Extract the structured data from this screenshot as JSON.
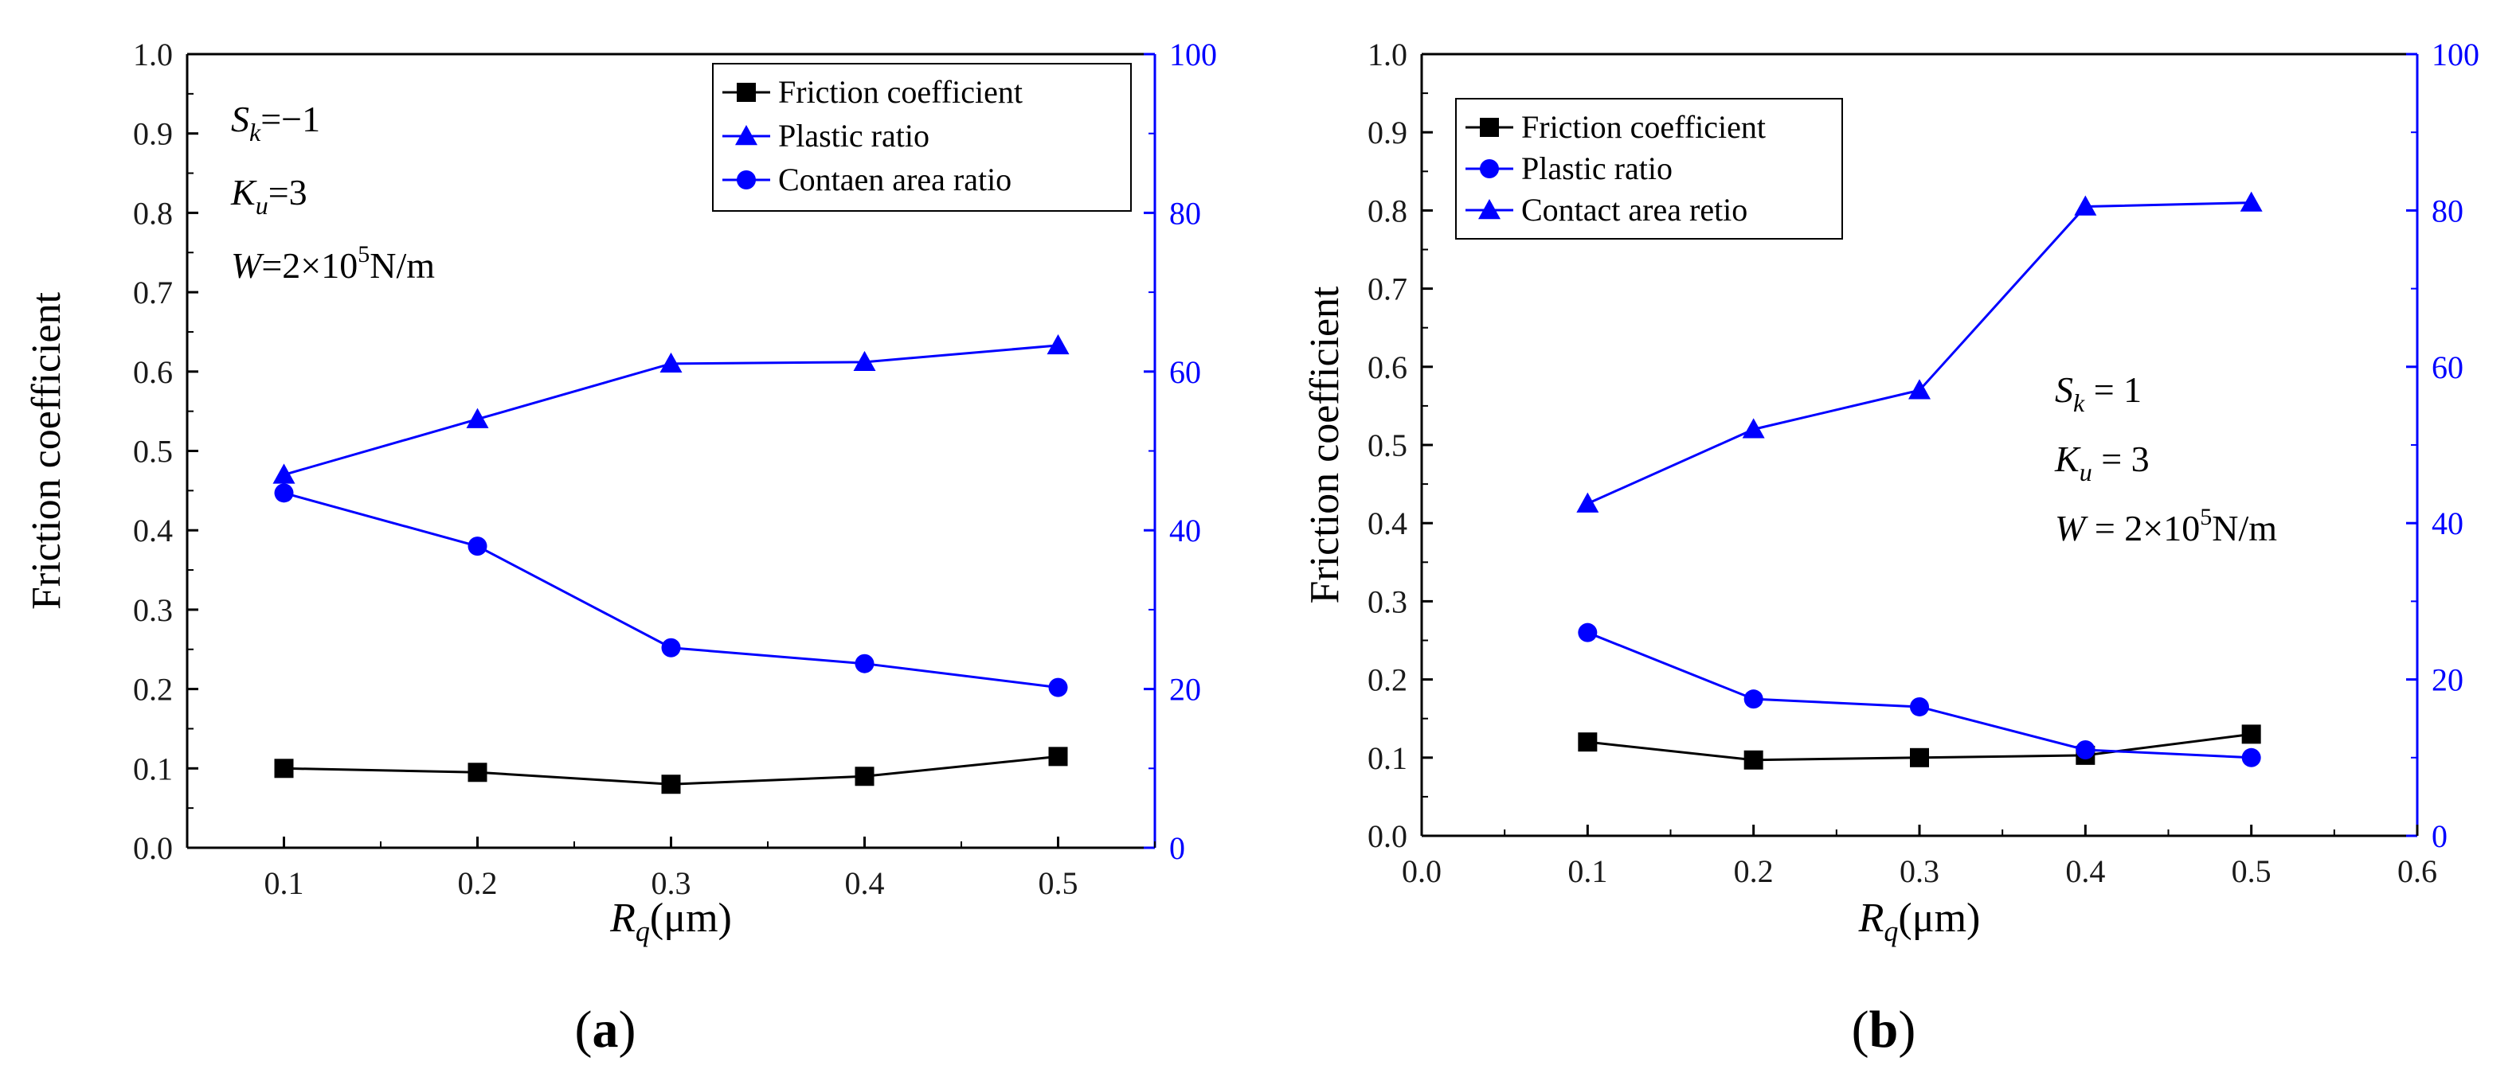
{
  "colors": {
    "black_series": "#000000",
    "blue_series": "#0000ff",
    "frame": "#000000"
  },
  "chart_data": [
    {
      "panel_label_open": "(",
      "panel_label_letter": "a",
      "panel_label_close": ")",
      "type": "line",
      "title": "",
      "xlabel_main": "R",
      "xlabel_sub": "q",
      "xlabel_unit": "(μm)",
      "ylabel": "Friction coefficient",
      "y2label": "",
      "xlim": [
        0.05,
        0.55
      ],
      "ylim": [
        0.0,
        1.0
      ],
      "y2lim": [
        0,
        100
      ],
      "x_ticks": [
        "0.1",
        "0.2",
        "0.3",
        "0.4",
        "0.5"
      ],
      "y_ticks": [
        "0.0",
        "0.1",
        "0.2",
        "0.3",
        "0.4",
        "0.5",
        "0.6",
        "0.7",
        "0.8",
        "0.9",
        "1.0"
      ],
      "y2_ticks": [
        "0",
        "20",
        "40",
        "60",
        "80",
        "100"
      ],
      "grid": false,
      "legend_position": "top-right",
      "legend": [
        {
          "label": "Friction coefficient",
          "marker": "square",
          "color": "#000000"
        },
        {
          "label": "Plastic ratio",
          "marker": "triangle",
          "color": "#0000ff"
        },
        {
          "label": "Contaen area ratio",
          "marker": "circle",
          "color": "#0000ff"
        }
      ],
      "series": [
        {
          "name": "Friction coefficient",
          "axis": "left",
          "color": "#000000",
          "marker": "square",
          "x": [
            0.1,
            0.2,
            0.3,
            0.4,
            0.5
          ],
          "values": [
            0.1,
            0.095,
            0.08,
            0.09,
            0.115
          ]
        },
        {
          "name": "Plastic ratio",
          "axis": "right",
          "color": "#0000ff",
          "marker": "triangle",
          "x": [
            0.1,
            0.2,
            0.3,
            0.4,
            0.5
          ],
          "values": [
            47,
            54,
            61,
            61.2,
            63.3
          ]
        },
        {
          "name": "Contaen area ratio",
          "axis": "right",
          "color": "#0000ff",
          "marker": "circle",
          "x": [
            0.1,
            0.2,
            0.3,
            0.4,
            0.5
          ],
          "values": [
            44.7,
            38,
            25.2,
            23.2,
            20.2
          ]
        }
      ],
      "annotation_lines": [
        {
          "main": "S",
          "sub": "k",
          "rest": "=−1",
          "sup": "",
          "tail": ""
        },
        {
          "main": "K",
          "sub": "u",
          "rest": "=3",
          "sup": "",
          "tail": ""
        },
        {
          "main": "W",
          "sub": "",
          "rest": "=2×10",
          "sup": "5",
          "tail": "N/m"
        }
      ]
    },
    {
      "panel_label_open": "(",
      "panel_label_letter": "b",
      "panel_label_close": ")",
      "type": "line",
      "title": "",
      "xlabel_main": "R",
      "xlabel_sub": "q",
      "xlabel_unit": "(μm)",
      "ylabel": "Friction coefficient",
      "y2label": "",
      "xlim": [
        0.0,
        0.6
      ],
      "ylim": [
        0.0,
        1.0
      ],
      "y2lim": [
        0,
        100
      ],
      "x_ticks": [
        "0.0",
        "0.1",
        "0.2",
        "0.3",
        "0.4",
        "0.5",
        "0.6"
      ],
      "y_ticks": [
        "0.0",
        "0.1",
        "0.2",
        "0.3",
        "0.4",
        "0.5",
        "0.6",
        "0.7",
        "0.8",
        "0.9",
        "1.0"
      ],
      "y2_ticks": [
        "0",
        "20",
        "40",
        "60",
        "80",
        "100"
      ],
      "grid": false,
      "legend_position": "top-left",
      "legend": [
        {
          "label": "Friction coefficient",
          "marker": "square",
          "color": "#000000"
        },
        {
          "label": "Plastic ratio",
          "marker": "circle",
          "color": "#0000ff"
        },
        {
          "label": "Contact area retio",
          "marker": "triangle",
          "color": "#0000ff"
        }
      ],
      "series": [
        {
          "name": "Friction coefficient",
          "axis": "left",
          "color": "#000000",
          "marker": "square",
          "x": [
            0.1,
            0.2,
            0.3,
            0.4,
            0.5
          ],
          "values": [
            0.12,
            0.097,
            0.1,
            0.103,
            0.13
          ]
        },
        {
          "name": "Plastic ratio",
          "axis": "right",
          "color": "#0000ff",
          "marker": "circle",
          "x": [
            0.1,
            0.2,
            0.3,
            0.4,
            0.5
          ],
          "values": [
            26,
            17.5,
            16.5,
            11,
            10
          ]
        },
        {
          "name": "Contact area retio",
          "axis": "right",
          "color": "#0000ff",
          "marker": "triangle",
          "x": [
            0.1,
            0.2,
            0.3,
            0.4,
            0.5
          ],
          "values": [
            42.5,
            52,
            57,
            80.5,
            81
          ]
        }
      ],
      "annotation_lines": [
        {
          "main": "S",
          "sub": "k",
          "rest": " = 1",
          "sup": "",
          "tail": ""
        },
        {
          "main": "K",
          "sub": "u",
          "rest": " = 3",
          "sup": "",
          "tail": ""
        },
        {
          "main": "W",
          "sub": "",
          "rest": " = 2×10",
          "sup": "5",
          "tail": "N/m"
        }
      ]
    }
  ]
}
